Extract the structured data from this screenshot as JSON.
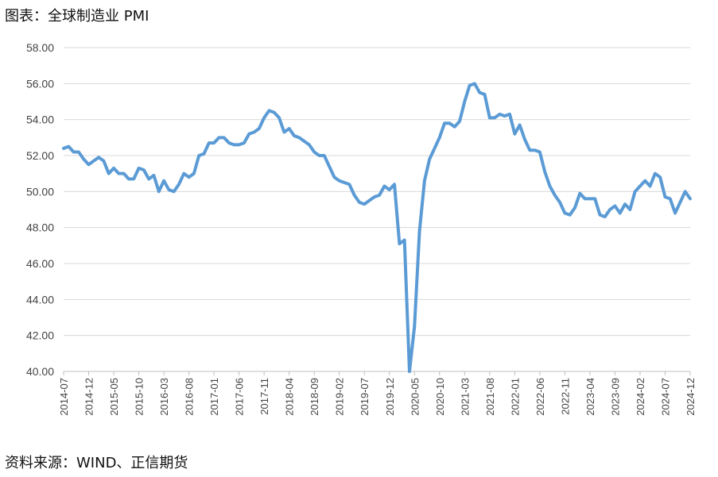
{
  "figure_title": "图表：全球制造业 PMI",
  "source_note": "资料来源：WIND、正信期货",
  "colors": {
    "line": "#5b9bd5",
    "grid": "#d9d9d9",
    "axis": "#bfbfbf"
  },
  "chart_data": {
    "type": "line",
    "title": "",
    "xlabel": "",
    "ylabel": "",
    "ylim": [
      40,
      58
    ],
    "yticks": [
      "58.00",
      "56.00",
      "54.00",
      "52.00",
      "50.00",
      "48.00",
      "46.00",
      "44.00",
      "42.00",
      "40.00"
    ],
    "xticks": [
      "2014-07",
      "2014-12",
      "2015-05",
      "2015-10",
      "2016-03",
      "2016-08",
      "2017-01",
      "2017-06",
      "2017-11",
      "2018-04",
      "2018-09",
      "2019-02",
      "2019-07",
      "2019-12",
      "2020-05",
      "2020-10",
      "2021-03",
      "2021-08",
      "2022-01",
      "2022-06",
      "2022-11",
      "2023-04",
      "2023-09",
      "2024-02",
      "2024-07",
      "2024-12"
    ],
    "grid": "horizontal",
    "legend": "none",
    "x_start": "2014-07",
    "x_end": "2024-12",
    "values": [
      52.4,
      52.5,
      52.2,
      52.2,
      51.8,
      51.5,
      51.7,
      51.9,
      51.7,
      51.0,
      51.3,
      51.0,
      51.0,
      50.7,
      50.7,
      51.3,
      51.2,
      50.7,
      50.9,
      50.0,
      50.6,
      50.1,
      50.0,
      50.4,
      51.0,
      50.8,
      51.0,
      52.0,
      52.1,
      52.7,
      52.7,
      53.0,
      53.0,
      52.7,
      52.6,
      52.6,
      52.7,
      53.2,
      53.3,
      53.5,
      54.1,
      54.5,
      54.4,
      54.1,
      53.3,
      53.5,
      53.1,
      53.0,
      52.8,
      52.6,
      52.2,
      52.0,
      52.0,
      51.4,
      50.8,
      50.6,
      50.5,
      50.4,
      49.8,
      49.4,
      49.3,
      49.5,
      49.7,
      49.8,
      50.3,
      50.1,
      50.4,
      47.1,
      47.3,
      40.0,
      42.5,
      47.8,
      50.6,
      51.8,
      52.4,
      53.0,
      53.8,
      53.8,
      53.6,
      53.9,
      55.0,
      55.9,
      56.0,
      55.5,
      55.4,
      54.1,
      54.1,
      54.3,
      54.2,
      54.3,
      53.2,
      53.7,
      52.9,
      52.3,
      52.3,
      52.2,
      51.1,
      50.3,
      49.8,
      49.4,
      48.8,
      48.7,
      49.1,
      49.9,
      49.6,
      49.6,
      49.6,
      48.7,
      48.6,
      49.0,
      49.2,
      48.8,
      49.3,
      49.0,
      50.0,
      50.3,
      50.6,
      50.3,
      51.0,
      50.8,
      49.7,
      49.6,
      48.8,
      49.4,
      50.0,
      49.6
    ]
  }
}
